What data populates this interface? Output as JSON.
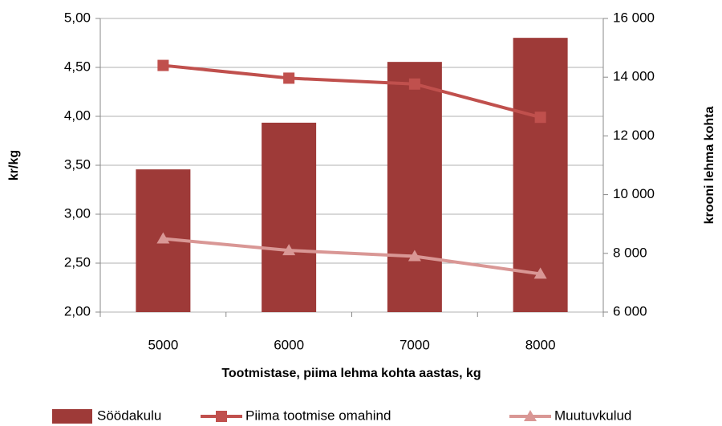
{
  "chart_data": {
    "type": "combo",
    "xlabel": "Tootmistase, piima lehma kohta aastas,  kg",
    "ylabel": "kr/kg",
    "y2label": "krooni lehma kohta",
    "categories": [
      "5000",
      "6000",
      "7000",
      "8000"
    ],
    "ylim": [
      2,
      5
    ],
    "yticks": [
      {
        "value": 2,
        "label": "2,00"
      },
      {
        "value": 2.5,
        "label": "2,50"
      },
      {
        "value": 3,
        "label": "3,00"
      },
      {
        "value": 3.5,
        "label": "3,50"
      },
      {
        "value": 4,
        "label": "4,00"
      },
      {
        "value": 4.5,
        "label": "4,50"
      },
      {
        "value": 5,
        "label": "5,00"
      }
    ],
    "y2lim": [
      6000,
      16000
    ],
    "y2ticks": [
      {
        "value": 6000,
        "label": "6 000"
      },
      {
        "value": 8000,
        "label": "8 000"
      },
      {
        "value": 10000,
        "label": "10 000"
      },
      {
        "value": 12000,
        "label": "12 000"
      },
      {
        "value": 14000,
        "label": "14 000"
      },
      {
        "value": 16000,
        "label": "16 000"
      }
    ],
    "grid": true,
    "legend": "bottom",
    "series": [
      {
        "name": "Söödakulu",
        "type": "bar",
        "axis": "y2",
        "color": "#9e3a38",
        "values": [
          10860,
          12450,
          14520,
          15340
        ]
      },
      {
        "name": "Piima tootmise  omahind",
        "type": "line",
        "marker": "square",
        "color": "#c0504d",
        "values": [
          4.52,
          4.39,
          4.33,
          3.99
        ]
      },
      {
        "name": "Muutuvkulud",
        "type": "line",
        "marker": "triangle",
        "color": "#d99795",
        "values": [
          2.75,
          2.63,
          2.57,
          2.39
        ]
      }
    ]
  }
}
